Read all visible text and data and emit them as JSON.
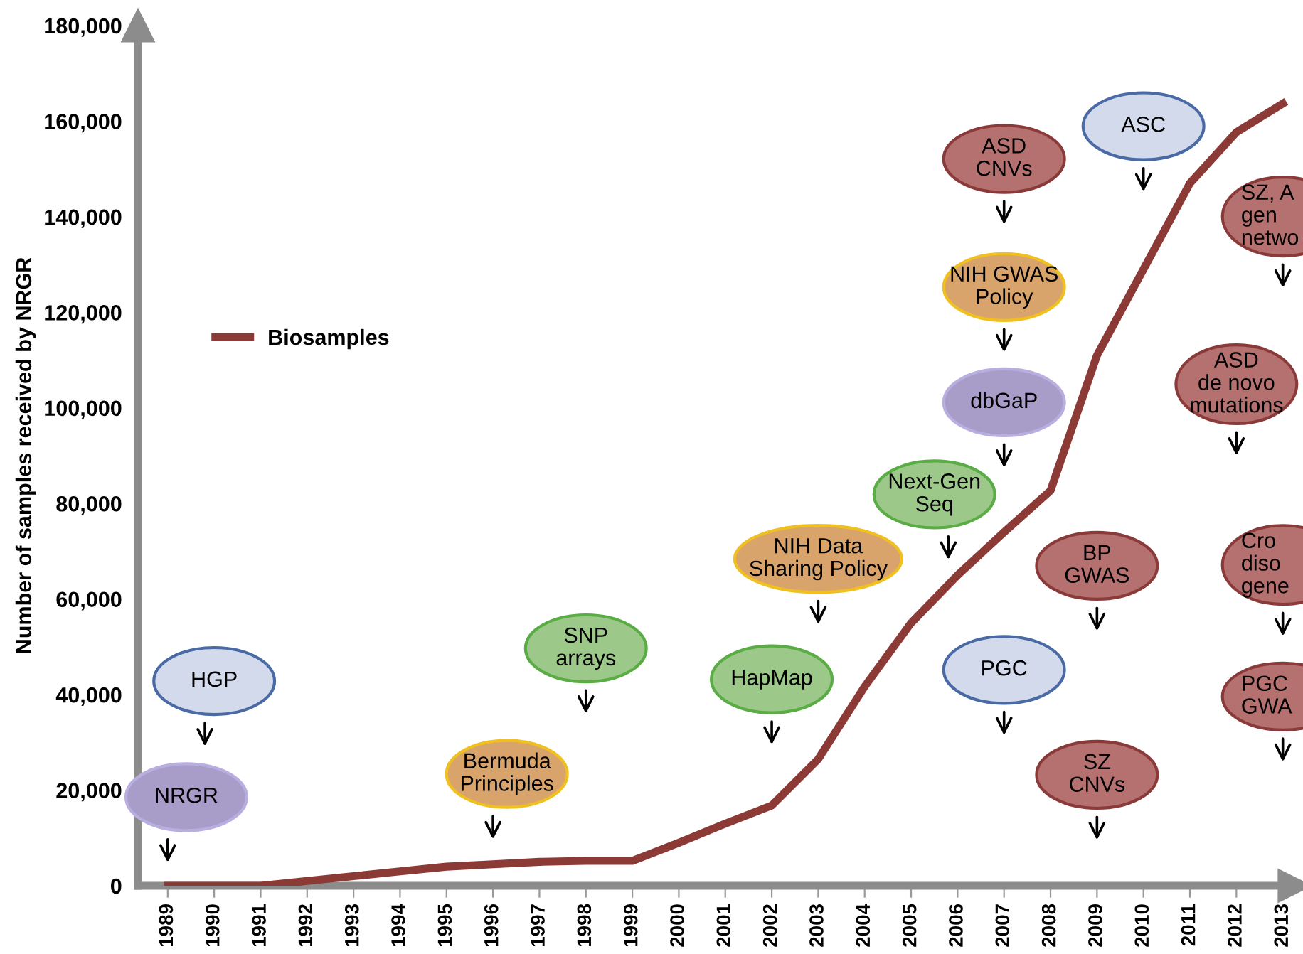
{
  "chart_data": {
    "type": "line",
    "ylabel": "Number of samples received by NRGR",
    "categories": [
      "1989",
      "1990",
      "1991",
      "1992",
      "1993",
      "1994",
      "1995",
      "1996",
      "1997",
      "1998",
      "1999",
      "2000",
      "2001",
      "2002",
      "2003",
      "2004",
      "2005",
      "2006",
      "2007",
      "2008",
      "2009",
      "2010",
      "2011",
      "2012",
      "2013"
    ],
    "series": [
      {
        "name": "Biosamples",
        "color": "#8b3a36",
        "values": [
          0,
          0,
          0,
          1000,
          2000,
          3000,
          4000,
          4500,
          5000,
          5200,
          5200,
          9000,
          13000,
          16800,
          26500,
          41700,
          55000,
          65000,
          74000,
          82700,
          111000,
          129000,
          147000,
          157700,
          163700
        ]
      }
    ],
    "ylim": [
      0,
      180000
    ],
    "yticks": [
      {
        "value": 0,
        "label": "0"
      },
      {
        "value": 20000,
        "label": "20,000"
      },
      {
        "value": 40000,
        "label": "40,000"
      },
      {
        "value": 60000,
        "label": "60,000"
      },
      {
        "value": 80000,
        "label": "80,000"
      },
      {
        "value": 100000,
        "label": "100,000"
      },
      {
        "value": 120000,
        "label": "120,000"
      },
      {
        "value": 140000,
        "label": "140,000"
      },
      {
        "value": 160000,
        "label": "160,000"
      },
      {
        "value": 180000,
        "label": "180,000"
      }
    ],
    "grid": false,
    "legend": "top left",
    "marker": "none",
    "line_style": "solid",
    "annotations": [
      "NRGR",
      "HGP",
      "Bermuda\nPrinciples",
      "SNP\narrays",
      "HapMap",
      "NIH Data\nSharing Policy",
      "Next-Gen\nSeq",
      "dbGaP",
      "NIH GWAS\nPolicy",
      "ASD\nCNVs",
      "ASC",
      "BP\nGWAS",
      "PGC",
      "SZ\nCNVs",
      "SZ, A\ngen\nnetwo",
      "ASD\nde novo\nmutations",
      "Cro\ndiso\ngene",
      "PGC\nGWA"
    ]
  }
}
